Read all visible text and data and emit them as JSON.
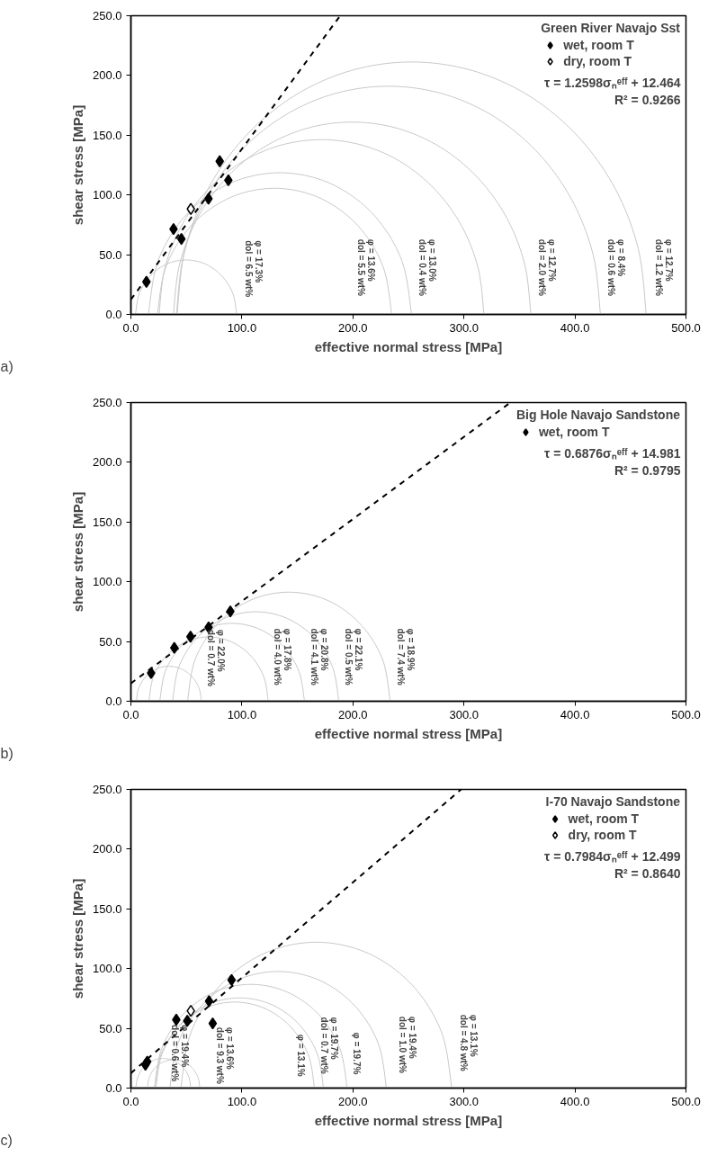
{
  "chart_data": [
    {
      "type": "scatter",
      "title": "a)",
      "xlabel": "effective normal stress [MPa]",
      "ylabel": "shear stress [MPa]",
      "legend_title": "Green River Navajo Sst",
      "legend": "top right",
      "xlim": [
        0,
        500
      ],
      "ylim": [
        0,
        250
      ],
      "xticks": [
        {
          "value": 0,
          "label": "0.0"
        },
        {
          "value": 100,
          "label": "100.0"
        },
        {
          "value": 200,
          "label": "200.0"
        },
        {
          "value": 300,
          "label": "300.0"
        },
        {
          "value": 400,
          "label": "400.0"
        },
        {
          "value": 500,
          "label": "500.0"
        }
      ],
      "yticks": [
        {
          "value": 0,
          "label": "0.0"
        },
        {
          "value": 50,
          "label": "50.0"
        },
        {
          "value": 100,
          "label": "100.0"
        },
        {
          "value": 150,
          "label": "150.0"
        },
        {
          "value": 200,
          "label": "200.0"
        },
        {
          "value": 250,
          "label": "250.0"
        }
      ],
      "series": [
        {
          "name": "wet, room T",
          "marker": "diamond",
          "color": "#000000",
          "x": [
            14.0,
            38.4,
            45.5,
            69.9,
            80.0,
            87.8
          ],
          "values": [
            27.3,
            71.5,
            63.2,
            96.9,
            128.2,
            112.3
          ]
        },
        {
          "name": "dry, room T",
          "marker": "diamond",
          "color": "#ffffff",
          "x": [
            54.0
          ],
          "values": [
            88.3
          ]
        },
        {
          "type": "line",
          "color": "#c8c8c8",
          "x": [
            4.1,
            7.6,
            17.5,
            32.2,
            49.7,
            67.2,
            81.9,
            91.8,
            95.3
          ],
          "values": [
            0,
            17.5,
            32.2,
            42.1,
            45.6,
            42.1,
            32.2,
            17.5,
            0
          ]
        },
        {
          "type": "line",
          "color": "#c8c8c8",
          "x": [
            23.8,
            31.8,
            54.7,
            89.0,
            129.4,
            169.8,
            204.1,
            227.0,
            235.0
          ],
          "values": [
            0,
            40.4,
            74.7,
            97.6,
            105.6,
            97.6,
            74.7,
            40.4,
            0
          ]
        },
        {
          "type": "line",
          "color": "#c8c8c8",
          "x": [
            15.7,
            24.7,
            50.4,
            88.9,
            134.3,
            179.7,
            218.2,
            243.9,
            252.9
          ],
          "values": [
            0,
            45.4,
            83.9,
            109.6,
            118.6,
            109.6,
            83.9,
            45.4,
            0
          ]
        },
        {
          "type": "line",
          "color": "#c8c8c8",
          "x": [
            25.4,
            30.4,
            45.0,
            68.3,
            98.5,
            133.8,
            171.7,
            209.6,
            244.9,
            275.1,
            298.4,
            313.0,
            318.0
          ],
          "values": [
            0,
            37.9,
            73.2,
            103.4,
            126.7,
            141.3,
            146.3,
            141.3,
            126.7,
            103.4,
            73.2,
            37.9,
            0
          ]
        },
        {
          "type": "line",
          "color": "#c8c8c8",
          "x": [
            38.3,
            43.8,
            59.9,
            85.5,
            118.8,
            157.6,
            199.3,
            241.0,
            279.8,
            313.1,
            338.7,
            354.8,
            360.3
          ],
          "values": [
            0,
            41.7,
            80.5,
            113.8,
            139.4,
            155.5,
            161.0,
            155.5,
            139.4,
            113.8,
            80.5,
            41.7,
            0
          ]
        },
        {
          "type": "line",
          "color": "#c8c8c8",
          "x": [
            41.0,
            47.5,
            66.6,
            97.0,
            136.5,
            182.5,
            232.0,
            281.5,
            327.5,
            367.0,
            397.4,
            416.5,
            423.0
          ],
          "values": [
            0,
            49.5,
            95.5,
            135.0,
            165.4,
            184.5,
            191.0,
            184.5,
            165.4,
            135.0,
            95.5,
            49.5,
            0
          ]
        },
        {
          "type": "line",
          "color": "#c8c8c8",
          "x": [
            41.6,
            48.8,
            69.9,
            103.5,
            147.2,
            198.2,
            252.9,
            307.6,
            358.6,
            402.3,
            436.0,
            457.1,
            464.2
          ],
          "values": [
            0,
            54.7,
            105.7,
            149.4,
            183.0,
            204.1,
            211.3,
            204.1,
            183.0,
            149.4,
            105.7,
            54.7,
            0
          ]
        },
        {
          "type": "line",
          "line_style": "dashed",
          "color": "#000000",
          "x": [
            0,
            188.5
          ],
          "values": [
            12.464,
            250
          ]
        }
      ],
      "annotations": [
        "τ = 1.2598σₙᵉᶠᶠ + 12.464",
        "R² = 0.9266",
        "φ = 17.3%\ndol = 6.5 wt%",
        "φ = 13.6%\ndol = 5.5 wt%",
        "φ = 13.0%\ndol = 0.4 wt%",
        "φ = 12.7%\ndol = 2.0 wt%",
        "φ = 8.4%\ndol = 0.6 wt%",
        "φ = 12.7%\ndol = 1.2 wt%"
      ]
    },
    {
      "type": "scatter",
      "title": "b)",
      "xlabel": "effective normal stress [MPa]",
      "ylabel": "shear stress [MPa]",
      "legend_title": "Big Hole Navajo Sandstone",
      "legend": "top right",
      "xlim": [
        0,
        500
      ],
      "ylim": [
        0,
        250
      ],
      "xticks": [
        {
          "value": 0,
          "label": "0.0"
        },
        {
          "value": 100,
          "label": "100.0"
        },
        {
          "value": 200,
          "label": "200.0"
        },
        {
          "value": 300,
          "label": "300.0"
        },
        {
          "value": 400,
          "label": "400.0"
        },
        {
          "value": 500,
          "label": "500.0"
        }
      ],
      "yticks": [
        {
          "value": 0,
          "label": "0.0"
        },
        {
          "value": 50,
          "label": "50.0"
        },
        {
          "value": 100,
          "label": "100.0"
        },
        {
          "value": 150,
          "label": "150.0"
        },
        {
          "value": 200,
          "label": "200.0"
        },
        {
          "value": 250,
          "label": "250.0"
        }
      ],
      "series": [
        {
          "name": "wet, room T",
          "marker": "diamond",
          "color": "#000000",
          "x": [
            18.2,
            39.1,
            53.7,
            70.0,
            89.6
          ],
          "values": [
            23.6,
            44.7,
            54.0,
            61.8,
            75.2
          ]
        },
        {
          "type": "line",
          "color": "#c8c8c8",
          "x": [
            4.9,
            7.1,
            13.5,
            23.0,
            34.2,
            45.4,
            54.9,
            61.3,
            63.5
          ],
          "values": [
            0,
            11.2,
            20.7,
            27.1,
            29.3,
            27.1,
            20.7,
            11.2,
            0
          ]
        },
        {
          "type": "line",
          "color": "#c8c8c8",
          "x": [
            16.2,
            20.3,
            32.0,
            49.4,
            70.0,
            90.6,
            108.0,
            119.7,
            123.8
          ],
          "values": [
            0,
            20.6,
            38.0,
            49.7,
            53.8,
            49.7,
            38.0,
            20.6,
            0
          ]
        },
        {
          "type": "line",
          "color": "#c8c8c8",
          "x": [
            26.0,
            31.0,
            45.1,
            66.2,
            91.2,
            116.2,
            137.3,
            151.4,
            156.4
          ],
          "values": [
            0,
            25.0,
            46.1,
            60.2,
            65.2,
            60.2,
            46.1,
            25.0,
            0
          ]
        },
        {
          "type": "line",
          "color": "#c8c8c8",
          "x": [
            37.5,
            43.2,
            59.4,
            83.7,
            112.4,
            141.1,
            165.4,
            181.6,
            187.3
          ],
          "values": [
            0,
            28.7,
            53.0,
            69.2,
            74.9,
            69.2,
            53.0,
            28.7,
            0
          ]
        },
        {
          "type": "line",
          "color": "#c8c8c8",
          "x": [
            51.0,
            57.9,
            77.8,
            107.3,
            142.3,
            177.3,
            206.8,
            226.7,
            233.6
          ],
          "values": [
            0,
            35.0,
            64.5,
            84.4,
            91.3,
            84.4,
            64.5,
            35.0,
            0
          ]
        },
        {
          "type": "line",
          "line_style": "dashed",
          "color": "#000000",
          "x": [
            0,
            341.8
          ],
          "values": [
            14.981,
            250
          ]
        }
      ],
      "annotations": [
        "τ = 0.6876σₙᵉᶠᶠ + 14.981",
        "R² = 0.9795",
        "φ = 22.0%\ndol = 0.7 wt%",
        "φ = 17.8%\ndol = 4.0 wt%",
        "φ = 20.8%\ndol = 4.1 wt%",
        "φ = 22.1%\ndol = 0.5 wt%",
        "φ = 18.9%\ndol = 7.4 wt%"
      ]
    },
    {
      "type": "scatter",
      "title": "c)",
      "xlabel": "effective normal stress [MPa]",
      "ylabel": "shear stress [MPa]",
      "legend_title": "I-70 Navajo Sandstone",
      "legend": "top right",
      "xlim": [
        0,
        500
      ],
      "ylim": [
        0,
        250
      ],
      "xticks": [
        {
          "value": 0,
          "label": "0.0"
        },
        {
          "value": 100,
          "label": "100.0"
        },
        {
          "value": 200,
          "label": "200.0"
        },
        {
          "value": 300,
          "label": "300.0"
        },
        {
          "value": 400,
          "label": "400.0"
        },
        {
          "value": 500,
          "label": "500.0"
        }
      ],
      "yticks": [
        {
          "value": 0,
          "label": "0.0"
        },
        {
          "value": 50,
          "label": "50.0"
        },
        {
          "value": 100,
          "label": "100.0"
        },
        {
          "value": 150,
          "label": "150.0"
        },
        {
          "value": 200,
          "label": "200.0"
        },
        {
          "value": 250,
          "label": "250.0"
        }
      ],
      "series": [
        {
          "name": "wet, room T",
          "marker": "diamond",
          "color": "#000000",
          "x": [
            13.1,
            14.7,
            40.9,
            50.8,
            70.4,
            73.7,
            90.7
          ],
          "values": [
            19.6,
            22.1,
            57.2,
            56.3,
            72.8,
            54.1,
            90.5
          ]
        },
        {
          "name": "dry, room T",
          "marker": "diamond",
          "color": "#ffffff",
          "x": [
            54.0
          ],
          "values": [
            64.7
          ]
        },
        {
          "type": "line",
          "color": "#c8c8c8",
          "x": [
            4.4,
            6.3,
            11.7,
            19.7,
            29.2,
            38.7,
            46.7,
            52.1,
            54.0
          ],
          "values": [
            0,
            9.5,
            17.5,
            22.9,
            24.8,
            22.9,
            17.5,
            9.5,
            0
          ]
        },
        {
          "type": "line",
          "color": "#c8c8c8",
          "x": [
            14.8,
            16.6,
            21.7,
            29.4,
            38.5,
            47.6,
            55.3,
            60.4,
            62.2
          ],
          "values": [
            0,
            9.1,
            16.8,
            21.9,
            23.7,
            21.9,
            16.8,
            9.1,
            0
          ]
        },
        {
          "type": "line",
          "color": "#c8c8c8",
          "x": [
            21.4,
            26.9,
            42.5,
            65.8,
            93.4,
            121.0,
            144.3,
            159.9,
            165.4
          ],
          "values": [
            0,
            27.6,
            50.9,
            66.5,
            72.0,
            66.5,
            50.9,
            27.6,
            0
          ]
        },
        {
          "type": "line",
          "color": "#c8c8c8",
          "x": [
            22.5,
            28.2,
            44.6,
            69.1,
            98.0,
            126.9,
            151.4,
            167.8,
            173.5
          ],
          "values": [
            0,
            28.9,
            53.4,
            69.8,
            75.5,
            69.8,
            53.4,
            28.9,
            0
          ]
        },
        {
          "type": "line",
          "color": "#c8c8c8",
          "x": [
            21.2,
            27.8,
            46.6,
            74.8,
            108.0,
            141.2,
            169.4,
            188.2,
            194.8
          ],
          "values": [
            0,
            33.2,
            61.4,
            80.2,
            86.8,
            80.2,
            61.4,
            33.2,
            0
          ]
        },
        {
          "type": "line",
          "color": "#c8c8c8",
          "x": [
            35.0,
            42.4,
            63.6,
            95.2,
            132.6,
            170.0,
            201.6,
            222.8,
            230.2
          ],
          "values": [
            0,
            37.4,
            69.0,
            90.2,
            97.6,
            90.2,
            69.0,
            37.4,
            0
          ]
        },
        {
          "type": "line",
          "color": "#c8c8c8",
          "x": [
            44.9,
            54.2,
            80.7,
            120.2,
            167.0,
            213.8,
            253.3,
            279.8,
            289.1
          ],
          "values": [
            0,
            46.8,
            86.3,
            112.8,
            122.1,
            112.8,
            86.3,
            46.8,
            0
          ]
        },
        {
          "type": "line",
          "line_style": "dashed",
          "color": "#000000",
          "x": [
            0,
            297.5
          ],
          "values": [
            12.499,
            250
          ]
        }
      ],
      "annotations": [
        "τ = 0.7984σₙᵉᶠᶠ + 12.499",
        "R² = 0.8640",
        "φ = 19.4%\ndol = 0.6 wt%",
        "φ = 13.6%\ndol = 9.3 wt%",
        "φ = 13.1%",
        "φ = 19.7%\ndol = 0.7 wt%",
        "φ = 19.7%",
        "φ = 19.4%\ndol = 1.0 wt%",
        "φ = 13.1%\ndol = 4.8 wt%"
      ]
    }
  ]
}
